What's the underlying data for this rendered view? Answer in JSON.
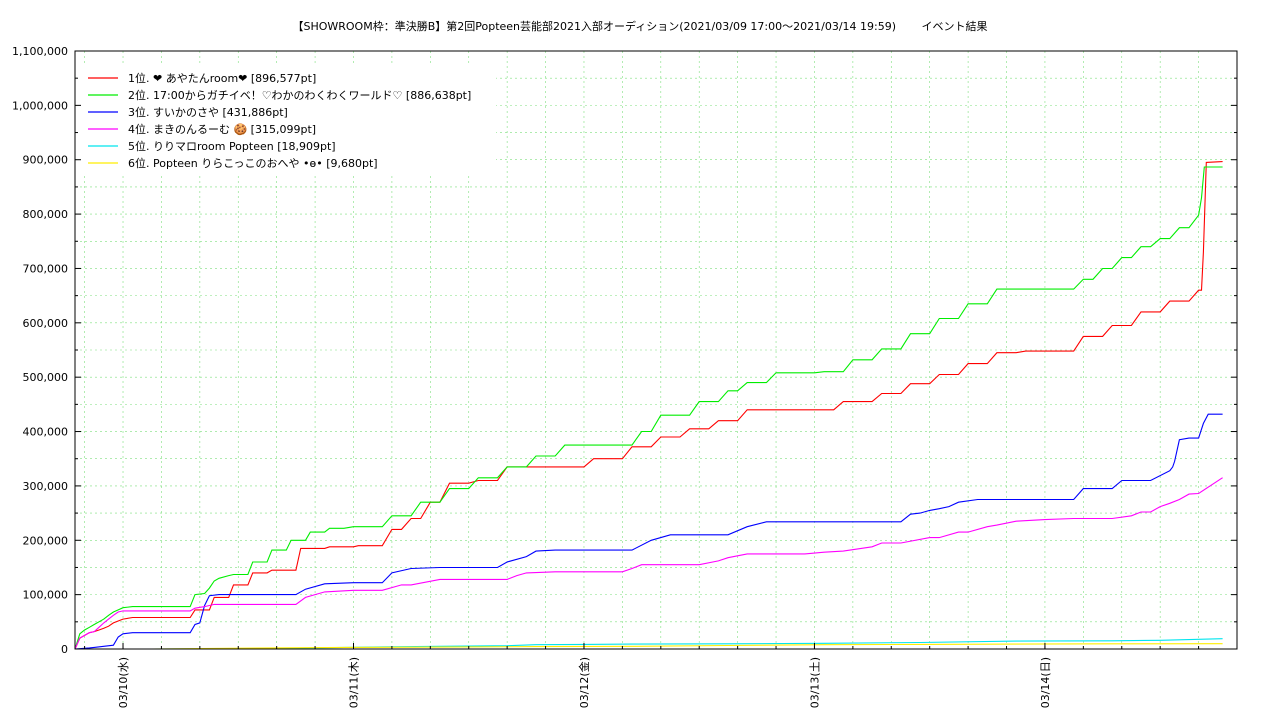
{
  "chart_data": {
    "type": "line",
    "title": "【SHOWROOM枠：準決勝B】第2回Popteen芸能部2021入部オーディション(2021/03/09 17:00～2021/03/14 19:59)　　 イベント結果",
    "xlabel": "",
    "ylabel": "",
    "grid": true,
    "legend_position": "top-left",
    "x_unit": "hours since 2021/03/09 17:00",
    "xlim": [
      2,
      123
    ],
    "ylim": [
      0,
      1100000
    ],
    "y_ticks": [
      0,
      100000,
      200000,
      300000,
      400000,
      500000,
      600000,
      700000,
      800000,
      900000,
      1000000,
      1100000
    ],
    "y_tick_labels": [
      "0",
      "100,000",
      "200,000",
      "300,000",
      "400,000",
      "500,000",
      "600,000",
      "700,000",
      "800,000",
      "900,000",
      "1,000,000",
      "1,100,000"
    ],
    "x_tick_labels": [
      {
        "label": "03/10(水)",
        "x": 7
      },
      {
        "label": "03/11(木)",
        "x": 31
      },
      {
        "label": "03/12(金)",
        "x": 55
      },
      {
        "label": "03/13(土)",
        "x": 79
      },
      {
        "label": "03/14(日)",
        "x": 103
      }
    ],
    "series": [
      {
        "name": "1位. ❤ あやたんroom❤ [896,577pt]",
        "color": "#ff0000",
        "x": [
          2,
          2.5,
          3,
          3.5,
          4,
          4.5,
          5,
          5.5,
          6,
          7,
          8,
          10,
          12,
          14,
          14.5,
          16,
          16.5,
          18,
          18.5,
          20,
          20.5,
          22,
          22.5,
          25,
          25.5,
          28,
          28.5,
          31,
          31.5,
          34,
          35,
          36,
          37,
          38,
          39,
          40,
          41,
          43,
          44,
          46,
          47,
          51,
          52,
          55,
          56,
          59,
          60,
          62,
          63,
          65,
          66,
          68,
          69,
          71,
          72,
          75,
          76,
          78,
          79,
          81,
          82,
          85,
          86,
          88,
          89,
          91,
          92,
          94,
          95,
          97,
          98,
          100,
          101,
          103,
          104,
          106,
          107,
          109,
          110,
          112,
          113,
          115,
          116,
          118,
          119,
          119.3,
          119.5,
          119.8,
          121.5
        ],
        "y": [
          0,
          20000,
          25000,
          30000,
          32000,
          35000,
          38000,
          42000,
          48000,
          55000,
          58000,
          58000,
          58000,
          58000,
          72000,
          72000,
          95000,
          95000,
          118000,
          118000,
          140000,
          140000,
          145000,
          145000,
          185000,
          185000,
          188000,
          188000,
          190000,
          190000,
          220000,
          220000,
          240000,
          240000,
          270000,
          270000,
          305000,
          305000,
          310000,
          310000,
          335000,
          335000,
          335000,
          335000,
          350000,
          350000,
          372000,
          372000,
          390000,
          390000,
          405000,
          405000,
          420000,
          420000,
          440000,
          440000,
          440000,
          440000,
          440000,
          440000,
          455000,
          455000,
          470000,
          470000,
          488000,
          488000,
          505000,
          505000,
          525000,
          525000,
          545000,
          545000,
          548000,
          548000,
          548000,
          548000,
          575000,
          575000,
          595000,
          595000,
          620000,
          620000,
          640000,
          640000,
          660000,
          660000,
          730000,
          895000,
          896577
        ]
      },
      {
        "name": "2位. 17:00からガチイベ！♡わかのわくわくワールド♡ [886,638pt]",
        "color": "#00ee00",
        "x": [
          2,
          2.5,
          3,
          3.5,
          4,
          4.5,
          5,
          5.5,
          6,
          6.5,
          7,
          8,
          10,
          12,
          14,
          14.5,
          15.5,
          16,
          16.5,
          17,
          18,
          18.5,
          20,
          20.5,
          22,
          22.5,
          24,
          24.5,
          26,
          26.5,
          28,
          28.5,
          30,
          31,
          34,
          35,
          37,
          38,
          40,
          41,
          43,
          44,
          46,
          47,
          49,
          50,
          52,
          53,
          58,
          59,
          60,
          61,
          62,
          63,
          66,
          67,
          69,
          70,
          71,
          72,
          74,
          75,
          79,
          80,
          82,
          83,
          85,
          86,
          88,
          89,
          91,
          92,
          94,
          95,
          97,
          98,
          103,
          104,
          106,
          107,
          108,
          109,
          110,
          111,
          112,
          113,
          114,
          115,
          116,
          117,
          118,
          119,
          119.3,
          119.6,
          121.5
        ],
        "y": [
          0,
          28000,
          35000,
          40000,
          45000,
          50000,
          55000,
          62000,
          68000,
          72000,
          76000,
          78000,
          78000,
          78000,
          78000,
          100000,
          102000,
          112000,
          125000,
          130000,
          135000,
          137000,
          137000,
          160000,
          160000,
          182000,
          182000,
          200000,
          200000,
          215000,
          215000,
          222000,
          222000,
          225000,
          225000,
          245000,
          245000,
          270000,
          270000,
          295000,
          295000,
          315000,
          315000,
          335000,
          335000,
          355000,
          355000,
          375000,
          375000,
          375000,
          375000,
          400000,
          400000,
          430000,
          430000,
          455000,
          455000,
          475000,
          475000,
          490000,
          490000,
          508000,
          508000,
          510000,
          510000,
          532000,
          532000,
          552000,
          552000,
          580000,
          580000,
          608000,
          608000,
          635000,
          635000,
          662000,
          662000,
          662000,
          662000,
          680000,
          680000,
          700000,
          700000,
          720000,
          720000,
          740000,
          740000,
          755000,
          755000,
          775000,
          775000,
          798000,
          830000,
          886638,
          886638
        ]
      },
      {
        "name": "3位. すいかのさや [431,886pt]",
        "color": "#0000ff",
        "x": [
          2,
          3.5,
          4,
          5,
          6,
          6.5,
          7,
          8,
          10,
          12,
          14,
          14.5,
          15,
          15.5,
          16,
          17,
          19,
          20,
          22,
          25,
          26,
          28,
          31,
          32,
          34,
          35,
          37,
          40,
          43,
          46,
          47,
          49,
          50,
          52,
          55,
          57,
          58,
          60,
          62,
          64,
          66,
          69,
          70,
          72,
          74,
          76,
          79,
          82,
          85,
          88,
          89,
          90,
          91,
          92,
          93,
          94,
          96,
          98,
          101,
          103,
          106,
          107,
          110,
          111,
          113,
          114,
          116,
          116.3,
          116.5,
          117,
          118,
          119,
          119.5,
          120,
          121.5
        ],
        "y": [
          0,
          2000,
          3000,
          5000,
          7000,
          22000,
          28000,
          30000,
          30000,
          30000,
          30000,
          45000,
          48000,
          80000,
          98000,
          100000,
          100000,
          100000,
          100000,
          100000,
          110000,
          120000,
          122000,
          122000,
          122000,
          140000,
          148000,
          150000,
          150000,
          150000,
          160000,
          170000,
          180000,
          182000,
          182000,
          182000,
          182000,
          182000,
          200000,
          210000,
          210000,
          210000,
          210000,
          225000,
          234000,
          234000,
          234000,
          234000,
          234000,
          234000,
          248000,
          250000,
          255000,
          258000,
          262000,
          270000,
          275000,
          275000,
          275000,
          275000,
          275000,
          295000,
          295000,
          310000,
          310000,
          310000,
          328000,
          335000,
          345000,
          385000,
          388000,
          388000,
          415000,
          431886,
          431886
        ]
      },
      {
        "name": "4位. まきのんるーむ 🍪 [315,099pt]",
        "color": "#ff00ff",
        "x": [
          2,
          2.5,
          3,
          3.5,
          4,
          4.5,
          5,
          5.5,
          6,
          6.5,
          7,
          8,
          10,
          12,
          14,
          14.5,
          15.5,
          16,
          16.5,
          17,
          20,
          22,
          25,
          26,
          28,
          31,
          34,
          36,
          37,
          40,
          43,
          47,
          48,
          49,
          52,
          55,
          58,
          59,
          60,
          61,
          62,
          66,
          67,
          69,
          70,
          72,
          75,
          78,
          80,
          82,
          85,
          86,
          88,
          91,
          92,
          94,
          95,
          97,
          98,
          100,
          103,
          106,
          108,
          110,
          112,
          113,
          114,
          115,
          116,
          117,
          118,
          119,
          121.5
        ],
        "y": [
          0,
          20000,
          25000,
          30000,
          32000,
          40000,
          48000,
          55000,
          62000,
          68000,
          70000,
          70000,
          70000,
          70000,
          70000,
          75000,
          78000,
          80000,
          82000,
          82000,
          82000,
          82000,
          82000,
          95000,
          105000,
          108000,
          108000,
          118000,
          118000,
          128000,
          128000,
          128000,
          135000,
          140000,
          142000,
          142000,
          142000,
          142000,
          148000,
          155000,
          155000,
          155000,
          155000,
          162000,
          168000,
          175000,
          175000,
          175000,
          178000,
          180000,
          188000,
          195000,
          195000,
          205000,
          205000,
          215000,
          215000,
          225000,
          228000,
          235000,
          238000,
          240000,
          240000,
          240000,
          245000,
          252000,
          252000,
          262000,
          268000,
          275000,
          285000,
          286000,
          315099
        ]
      },
      {
        "name": "5位. りりマロroom Popteen [18,909pt]",
        "color": "#00e5ee",
        "x": [
          2,
          10,
          20,
          30,
          40,
          47,
          50,
          55,
          60,
          70,
          80,
          90,
          100,
          110,
          115,
          121.5
        ],
        "y": [
          0,
          0,
          500,
          3000,
          5000,
          6000,
          8000,
          8500,
          9000,
          9500,
          10500,
          12000,
          14500,
          15000,
          16000,
          18909
        ]
      },
      {
        "name": "6位. Popteen りらこっこのおへや •ɵ• [9,680pt]",
        "color": "#ffee00",
        "x": [
          2,
          10,
          15,
          30,
          40,
          50,
          60,
          70,
          80,
          90,
          100,
          110,
          121.5
        ],
        "y": [
          0,
          0,
          1000,
          3000,
          3500,
          4500,
          5000,
          6500,
          8000,
          8500,
          9000,
          9500,
          9680
        ]
      }
    ]
  }
}
